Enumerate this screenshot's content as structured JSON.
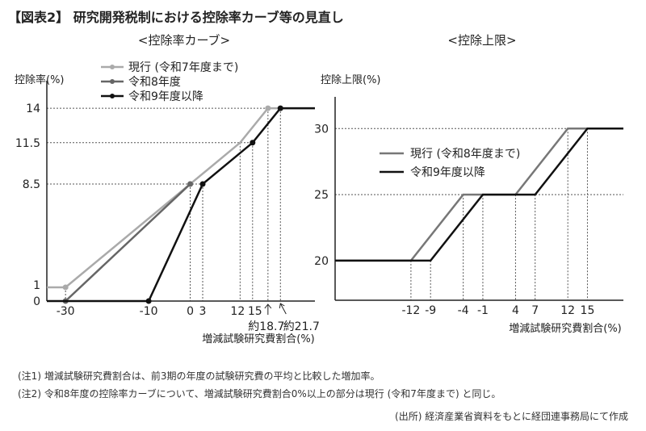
{
  "title": "【図表2】 研究開発税制における控除率カーブ等の見直し",
  "notes": [
    "(注1) 増減試験研究費割合は、前3期の年度の試験研究費の平均と比較した増加率。",
    "(注2) 令和8年度の控除率カーブについて、増減試験研究費割合0%以上の部分は現行 (令和7年度まで) と同じ。"
  ],
  "source": "(出所) 経済産業省資料をもとに経団連事務局にて作成",
  "chart_data": [
    {
      "type": "line",
      "title": "<控除率カーブ>",
      "ylabel": "控除率(%)",
      "xlabel": "増減試験研究費割合(%)",
      "xlim": [
        -34.5,
        30
      ],
      "ylim": [
        0,
        16
      ],
      "yticks": [
        0,
        1,
        8.5,
        11.5,
        14
      ],
      "xticks": [
        {
          "v": -30,
          "label": "-30"
        },
        {
          "v": -10,
          "label": "-10"
        },
        {
          "v": 0,
          "label": "0"
        },
        {
          "v": 3,
          "label": "3"
        },
        {
          "v": 12,
          "label": "12"
        },
        {
          "v": 15,
          "label": "15"
        }
      ],
      "annotations": [
        {
          "v": 18.7,
          "label": "約18.7"
        },
        {
          "v": 21.7,
          "label": "約21.7"
        }
      ],
      "legend_placement": "top-left",
      "series": [
        {
          "name": "現行 (令和7年度まで)",
          "color": "#aaaaaa",
          "points": [
            [
              -34.5,
              1
            ],
            [
              -30,
              1
            ],
            [
              0,
              8.5
            ],
            [
              12,
              11.5
            ],
            [
              18.7,
              14
            ],
            [
              30,
              14
            ]
          ],
          "markers": [
            [
              -30,
              1
            ],
            [
              0,
              8.5
            ],
            [
              18.7,
              14
            ]
          ]
        },
        {
          "name": "令和8年度",
          "color": "#666666",
          "points": [
            [
              -30,
              0
            ],
            [
              0,
              8.5
            ]
          ],
          "markers": [
            [
              -30,
              0
            ],
            [
              0,
              8.5
            ]
          ]
        },
        {
          "name": "令和9年度以降",
          "color": "#111111",
          "points": [
            [
              -34.5,
              0
            ],
            [
              -10,
              0
            ],
            [
              3,
              8.5
            ],
            [
              15,
              11.5
            ],
            [
              21.7,
              14
            ],
            [
              30,
              14
            ]
          ],
          "markers": [
            [
              -10,
              0
            ],
            [
              3,
              8.5
            ],
            [
              15,
              11.5
            ],
            [
              21.7,
              14
            ]
          ]
        }
      ]
    },
    {
      "type": "line",
      "title": "<控除上限>",
      "ylabel": "控除上限(%)",
      "xlabel": "増減試験研究費割合(%)",
      "xlim": [
        -23.6,
        20.5
      ],
      "ylim": [
        17,
        32.4
      ],
      "yticks": [
        20,
        25,
        30
      ],
      "xticks": [
        {
          "v": -12,
          "label": "-12"
        },
        {
          "v": -9,
          "label": "-9"
        },
        {
          "v": -4,
          "label": "-4"
        },
        {
          "v": -1,
          "label": "-1"
        },
        {
          "v": 4,
          "label": "4"
        },
        {
          "v": 7,
          "label": "7"
        },
        {
          "v": 12,
          "label": "12"
        },
        {
          "v": 15,
          "label": "15"
        }
      ],
      "legend_placement": "center-left",
      "series": [
        {
          "name": "現行 (令和8年度まで)",
          "color": "#777777",
          "points": [
            [
              -23.6,
              20
            ],
            [
              -12,
              20
            ],
            [
              -4,
              25
            ],
            [
              4,
              25
            ],
            [
              12,
              30
            ],
            [
              20.5,
              30
            ]
          ]
        },
        {
          "name": "令和9年度以降",
          "color": "#111111",
          "points": [
            [
              -23.6,
              20
            ],
            [
              -9,
              20
            ],
            [
              -1,
              25
            ],
            [
              7,
              25
            ],
            [
              15,
              30
            ],
            [
              20.5,
              30
            ]
          ]
        }
      ]
    }
  ]
}
